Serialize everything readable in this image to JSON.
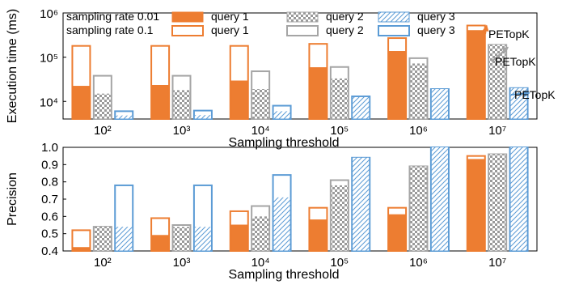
{
  "chart_data": [
    {
      "type": "bar",
      "xlabel": "Sampling threshold",
      "ylabel": "Execution time (ms)",
      "yscale": "log",
      "ylim": [
        4000,
        1000000
      ],
      "yticks": [
        "10⁴",
        "10⁵",
        "10⁶"
      ],
      "categories": [
        "10²",
        "10³",
        "10⁴",
        "10⁵",
        "10⁶",
        "10⁷"
      ],
      "series": [
        {
          "name": "query 1",
          "group": "sampling rate 0.1",
          "color": "#ed7d31",
          "style": "hollow",
          "values": [
            180000,
            180000,
            180000,
            200000,
            270000,
            520000
          ]
        },
        {
          "name": "query 2",
          "group": "sampling rate 0.1",
          "color": "#a5a5a5",
          "style": "hollow",
          "values": [
            38000,
            38000,
            48000,
            60000,
            95000,
            190000
          ]
        },
        {
          "name": "query 3",
          "group": "sampling rate 0.1",
          "color": "#5b9bd5",
          "style": "hollow",
          "values": [
            6000,
            6200,
            8000,
            13000,
            19000,
            20000
          ]
        },
        {
          "name": "query 1",
          "group": "sampling rate 0.01",
          "color": "#ed7d31",
          "style": "solid",
          "values": [
            22000,
            23000,
            29000,
            58000,
            135000,
            400000
          ]
        },
        {
          "name": "query 2",
          "group": "sampling rate 0.01",
          "color": "#a5a5a5",
          "style": "crosshatch",
          "values": [
            15000,
            18000,
            19000,
            33000,
            72000,
            190000
          ]
        },
        {
          "name": "query 3",
          "group": "sampling rate 0.01",
          "color": "#5b9bd5",
          "style": "diagonal",
          "values": [
            4800,
            4900,
            6000,
            12500,
            19000,
            20000
          ]
        }
      ],
      "annotations": [
        {
          "text": "PETopK",
          "category": "10⁷",
          "query": "query 1",
          "color": "#ed7d31"
        },
        {
          "text": "PETopK",
          "category": "10⁷",
          "query": "query 2",
          "color": "#a5a5a5"
        },
        {
          "text": "PETopK",
          "category": "10⁷",
          "query": "query 3",
          "color": "#5b9bd5"
        }
      ],
      "legend": {
        "placement": "top",
        "rows": [
          {
            "label": "sampling rate 0.01",
            "entries": [
              {
                "text": "query 1",
                "style": "solid",
                "color": "#ed7d31"
              },
              {
                "text": "query 2",
                "style": "crosshatch",
                "color": "#a5a5a5"
              },
              {
                "text": "query 3",
                "style": "diagonal",
                "color": "#5b9bd5"
              }
            ]
          },
          {
            "label": "sampling rate 0.1",
            "entries": [
              {
                "text": "query 1",
                "style": "hollow",
                "color": "#ed7d31"
              },
              {
                "text": "query 2",
                "style": "hollow",
                "color": "#a5a5a5"
              },
              {
                "text": "query 3",
                "style": "hollow",
                "color": "#5b9bd5"
              }
            ]
          }
        ]
      }
    },
    {
      "type": "bar",
      "xlabel": "Sampling threshold",
      "ylabel": "Precision",
      "ylim": [
        0.4,
        1.0
      ],
      "yticks": [
        "0.4",
        "0.5",
        "0.6",
        "0.7",
        "0.8",
        "0.9",
        "1.0"
      ],
      "categories": [
        "10²",
        "10³",
        "10⁴",
        "10⁵",
        "10⁶",
        "10⁷"
      ],
      "series": [
        {
          "name": "query 1",
          "group": "sampling rate 0.1",
          "color": "#ed7d31",
          "style": "hollow",
          "values": [
            0.52,
            0.59,
            0.63,
            0.65,
            0.65,
            0.95
          ]
        },
        {
          "name": "query 2",
          "group": "sampling rate 0.1",
          "color": "#a5a5a5",
          "style": "hollow",
          "values": [
            0.54,
            0.55,
            0.66,
            0.81,
            0.89,
            0.96
          ]
        },
        {
          "name": "query 3",
          "group": "sampling rate 0.1",
          "color": "#5b9bd5",
          "style": "hollow",
          "values": [
            0.78,
            0.78,
            0.84,
            0.94,
            1.0,
            1.0
          ]
        },
        {
          "name": "query 1",
          "group": "sampling rate 0.01",
          "color": "#ed7d31",
          "style": "solid",
          "values": [
            0.42,
            0.49,
            0.55,
            0.58,
            0.61,
            0.93
          ]
        },
        {
          "name": "query 2",
          "group": "sampling rate 0.01",
          "color": "#a5a5a5",
          "style": "crosshatch",
          "values": [
            0.54,
            0.54,
            0.6,
            0.78,
            0.89,
            0.96
          ]
        },
        {
          "name": "query 3",
          "group": "sampling rate 0.01",
          "color": "#5b9bd5",
          "style": "diagonal",
          "values": [
            0.54,
            0.54,
            0.71,
            0.94,
            1.0,
            1.0
          ]
        }
      ]
    }
  ]
}
